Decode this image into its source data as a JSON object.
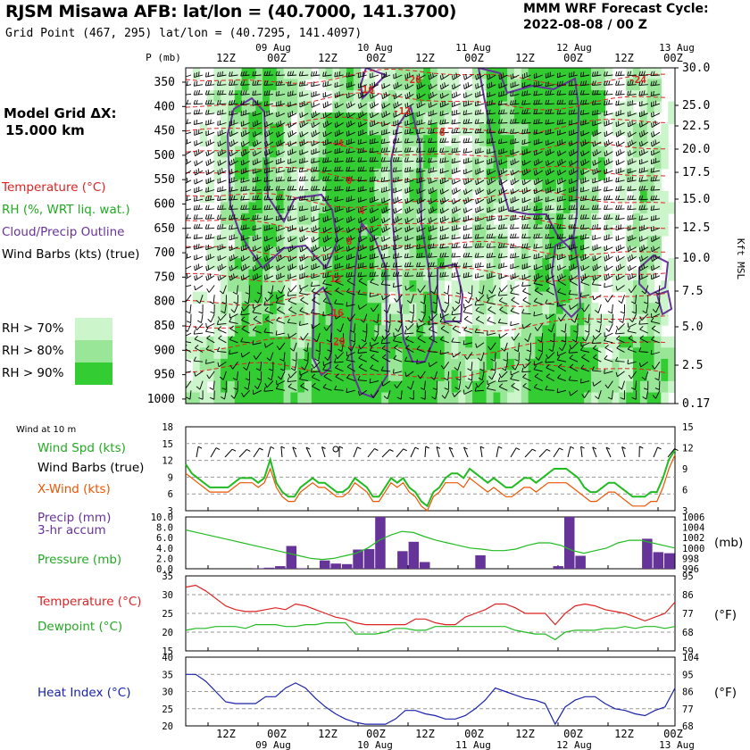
{
  "header": {
    "station_title": "RJSM Misawa AFB:  lat/lon = (40.7000, 141.3700)",
    "grid_point": "Grid Point (467, 295) lat/lon = (40.7295, 141.4097)",
    "cycle_title": "MMM WRF Forecast Cycle:",
    "cycle_value": "2022-08-08 / 00  Z"
  },
  "model_grid": {
    "title": "Model Grid ΔX:",
    "value": "15.000 km"
  },
  "legend": {
    "temperature": "Temperature (°C)",
    "rh": "RH (%, WRT liq. wat.)",
    "cloud": "Cloud/Precip Outline",
    "wind_barbs": "Wind Barbs (kts) (true)",
    "rh_levels": [
      {
        "label": "RH > 70%",
        "color": "#ccf5cc"
      },
      {
        "label": "RH > 80%",
        "color": "#99e699"
      },
      {
        "label": "RH > 90%",
        "color": "#33cc33"
      }
    ]
  },
  "colors": {
    "temperature": "#dd2222",
    "rh": "#22bb22",
    "cloud": "#663399",
    "wind": "#000000",
    "xwind": "#ee5500",
    "precip": "#663399",
    "pressure": "#22bb22",
    "dewpoint": "#22bb22",
    "heat_index": "#1a22aa",
    "grid": "#999999"
  },
  "time_axis": {
    "top_labels": [
      "12Z",
      "00Z",
      "12Z",
      "00Z",
      "12Z",
      "00Z",
      "12Z",
      "00Z",
      "12Z",
      "00Z"
    ],
    "date_labels": [
      "09 Aug",
      "10 Aug",
      "11 Aug",
      "12 Aug",
      "13 Aug"
    ]
  },
  "chart_data": [
    {
      "type": "heatmap",
      "name": "cross_section",
      "y_label_left": "P (mb)",
      "y_ticks_left": [
        "350",
        "400",
        "450",
        "500",
        "550",
        "600",
        "650",
        "700",
        "750",
        "800",
        "850",
        "900",
        "950",
        "1000"
      ],
      "y_label_right": "Kft MSL",
      "y_ticks_right": [
        "30.0",
        "25.0",
        "22.5",
        "20.0",
        "17.5",
        "15.0",
        "12.5",
        "10.0",
        "7.5",
        "5.0",
        "2.5",
        "0.17"
      ],
      "temperature_labels": [
        "-20",
        "-16",
        "-12",
        "-8",
        "-4",
        "0",
        "4",
        "8",
        "12",
        "16",
        "20",
        "-24"
      ]
    },
    {
      "type": "line",
      "name": "surface_wind",
      "title": "Wind at 10 m",
      "labels": {
        "speed": "Wind Spd (kts)",
        "barbs": "Wind Barbs (true)",
        "xwind": "X-Wind (kts)"
      },
      "ylim": [
        0,
        18
      ],
      "y_ticks_left": [
        "18",
        "15",
        "12",
        "9",
        "6",
        "3"
      ],
      "y_ticks_right": [
        "15",
        "12",
        "9",
        "6",
        "3"
      ],
      "series": [
        {
          "name": "Wind Spd (kts)",
          "color": "#22bb22",
          "values": [
            10,
            8,
            7,
            6,
            5,
            5,
            5,
            5,
            6,
            7,
            7,
            7,
            6,
            7,
            11,
            6,
            4,
            3,
            3,
            5,
            6,
            7,
            6,
            6,
            5,
            4,
            4,
            5,
            7,
            6,
            5,
            3,
            3,
            5,
            7,
            6,
            7,
            5,
            4,
            2,
            1,
            4,
            5,
            7,
            8,
            8,
            7,
            9,
            8,
            7,
            6,
            7,
            6,
            5,
            5,
            6,
            7,
            7,
            6,
            7,
            8,
            9,
            9,
            9,
            8,
            7,
            5,
            4,
            4,
            5,
            6,
            6,
            5,
            4,
            3,
            3,
            3,
            4,
            4,
            7,
            11,
            13
          ]
        },
        {
          "name": "X-Wind (kts)",
          "color": "#ee5500",
          "values": [
            8,
            7,
            6,
            5,
            4,
            4,
            4,
            4,
            5,
            6,
            6,
            6,
            5,
            6,
            9,
            5,
            3,
            2,
            2,
            4,
            5,
            6,
            5,
            5,
            4,
            3,
            3,
            4,
            6,
            5,
            4,
            2,
            2,
            4,
            6,
            5,
            6,
            4,
            3,
            1,
            0,
            3,
            4,
            6,
            6,
            6,
            5,
            7,
            6,
            5,
            4,
            5,
            4,
            3,
            3,
            4,
            5,
            5,
            4,
            5,
            6,
            6,
            6,
            6,
            5,
            4,
            3,
            2,
            2,
            3,
            4,
            4,
            3,
            2,
            1,
            1,
            1,
            2,
            2,
            5,
            9,
            12
          ]
        }
      ]
    },
    {
      "type": "bar",
      "name": "precip_pressure",
      "labels": {
        "precip": "Precip (mm)",
        "accum": "3-hr accum",
        "pressure": "Pressure (mb)",
        "unit_right": "(mb)"
      },
      "ylim": [
        0,
        10
      ],
      "y_ticks_left": [
        "10.0",
        "8.0",
        "6.0",
        "4.0",
        "2.0",
        "0.0"
      ],
      "y_ticks_right": [
        "1006",
        "1004",
        "1002",
        "1000",
        "998",
        "996"
      ],
      "precip_bars": [
        0,
        0,
        0,
        0,
        0,
        0,
        0.1,
        0.2,
        0.5,
        4.4,
        0.1,
        0,
        1.6,
        1.0,
        0.9,
        3.7,
        3.8,
        10.0,
        0,
        3.4,
        5.2,
        1.3,
        0,
        0,
        0,
        0,
        2.6,
        0,
        0,
        0,
        0,
        0,
        0,
        0.5,
        10.0,
        2.5,
        0,
        0,
        0,
        0,
        0,
        5.8,
        3.2,
        3.0
      ],
      "pressure_mb": [
        1003.5,
        1003.0,
        1002.5,
        1002.0,
        1001.5,
        1001.0,
        1000.5,
        1000.0,
        999.5,
        999.0,
        998.5,
        998.0,
        997.8,
        998.0,
        998.5,
        999.0,
        1000.0,
        1001.5,
        1002.5,
        1003.2,
        1003.0,
        1002.2,
        1001.5,
        1001.0,
        1000.5,
        1000.0,
        999.8,
        999.5,
        999.5,
        999.8,
        1000.5,
        1001.0,
        1001.0,
        1000.5,
        999.5,
        999.0,
        999.5,
        1000.0,
        1001.0,
        1001.5,
        1001.5,
        1001.0,
        1000.5,
        1000.0
      ]
    },
    {
      "type": "line",
      "name": "temperature_dewpoint",
      "labels": {
        "temperature": "Temperature (°C)",
        "dewpoint": "Dewpoint (°C)",
        "unit_right": "(°F)"
      },
      "ylim": [
        15,
        35
      ],
      "y_ticks_left": [
        "35",
        "30",
        "25",
        "20",
        "15"
      ],
      "y_ticks_right": [
        "95",
        "86",
        "77",
        "68",
        "59"
      ],
      "series": [
        {
          "name": "Temperature (°C)",
          "color": "#dd2222",
          "values": [
            32,
            32.5,
            31,
            29,
            27,
            26,
            25.5,
            25.5,
            26,
            26.5,
            26,
            27.5,
            27,
            26,
            25,
            24,
            23.5,
            22.5,
            22,
            22,
            22,
            22,
            22,
            23.5,
            23.5,
            22.5,
            22,
            22,
            24,
            25,
            26,
            27.5,
            27.5,
            26.5,
            25,
            25,
            25,
            22,
            25,
            27,
            27.5,
            27,
            26,
            25.5,
            25,
            24,
            23,
            24,
            25,
            28
          ]
        },
        {
          "name": "Dewpoint (°C)",
          "color": "#22bb22",
          "values": [
            20.5,
            21,
            21,
            21.5,
            21.5,
            21.5,
            21,
            22,
            22,
            22,
            21.5,
            21.5,
            22,
            22,
            22.5,
            22.5,
            22.5,
            19.5,
            19.5,
            19.5,
            20,
            21,
            21,
            20.5,
            20.5,
            21.5,
            21.5,
            21.5,
            21.5,
            21.5,
            21.5,
            21.5,
            21.5,
            20.5,
            20,
            19.5,
            19.5,
            18,
            20,
            20.5,
            20.5,
            20.5,
            21,
            21,
            21.5,
            21,
            21.5,
            21.5,
            21,
            21.5
          ]
        }
      ]
    },
    {
      "type": "line",
      "name": "heat_index",
      "labels": {
        "heat_index": "Heat Index (°C)",
        "unit_right": "(°F)"
      },
      "ylim": [
        20,
        40
      ],
      "y_ticks_left": [
        "40",
        "35",
        "30",
        "25",
        "20"
      ],
      "y_ticks_right": [
        "104",
        "95",
        "86",
        "77",
        "68"
      ],
      "series": [
        {
          "name": "Heat Index (°C)",
          "color": "#1a22aa",
          "values": [
            35,
            35,
            33,
            30,
            27,
            26.5,
            26.5,
            26.5,
            28.5,
            28.5,
            31,
            32.5,
            31,
            28,
            25.5,
            23.5,
            22,
            21,
            20.5,
            20.5,
            20.5,
            22,
            24.5,
            24.5,
            23.5,
            23,
            22,
            22,
            23,
            25,
            27.5,
            31,
            30,
            29,
            28,
            27.5,
            26.5,
            20.5,
            25.5,
            27.5,
            28.5,
            28.5,
            26.5,
            25,
            24.5,
            23.5,
            23,
            24.5,
            25.5,
            31
          ]
        }
      ]
    }
  ]
}
